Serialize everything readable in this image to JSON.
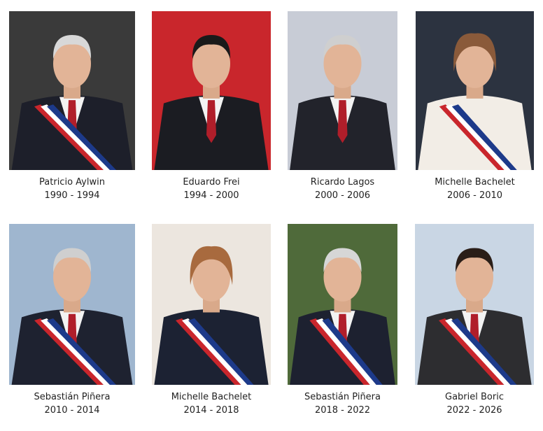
{
  "presidents": [
    {
      "name": "Patricio Aylwin",
      "term": "1990 - 1994"
    },
    {
      "name": "Eduardo Frei",
      "term": "1994 - 2000"
    },
    {
      "name": "Ricardo Lagos",
      "term": "2000 - 2006"
    },
    {
      "name": "Michelle Bachelet",
      "term": "2006 - 2010"
    },
    {
      "name": "Sebastián Piñera",
      "term": "2010 - 2014"
    },
    {
      "name": "Michelle Bachelet",
      "term": "2014 - 2018"
    },
    {
      "name": "Sebastián Piñera",
      "term": "2018 - 2022"
    },
    {
      "name": "Gabriel Boric",
      "term": "2022 - 2026"
    }
  ]
}
